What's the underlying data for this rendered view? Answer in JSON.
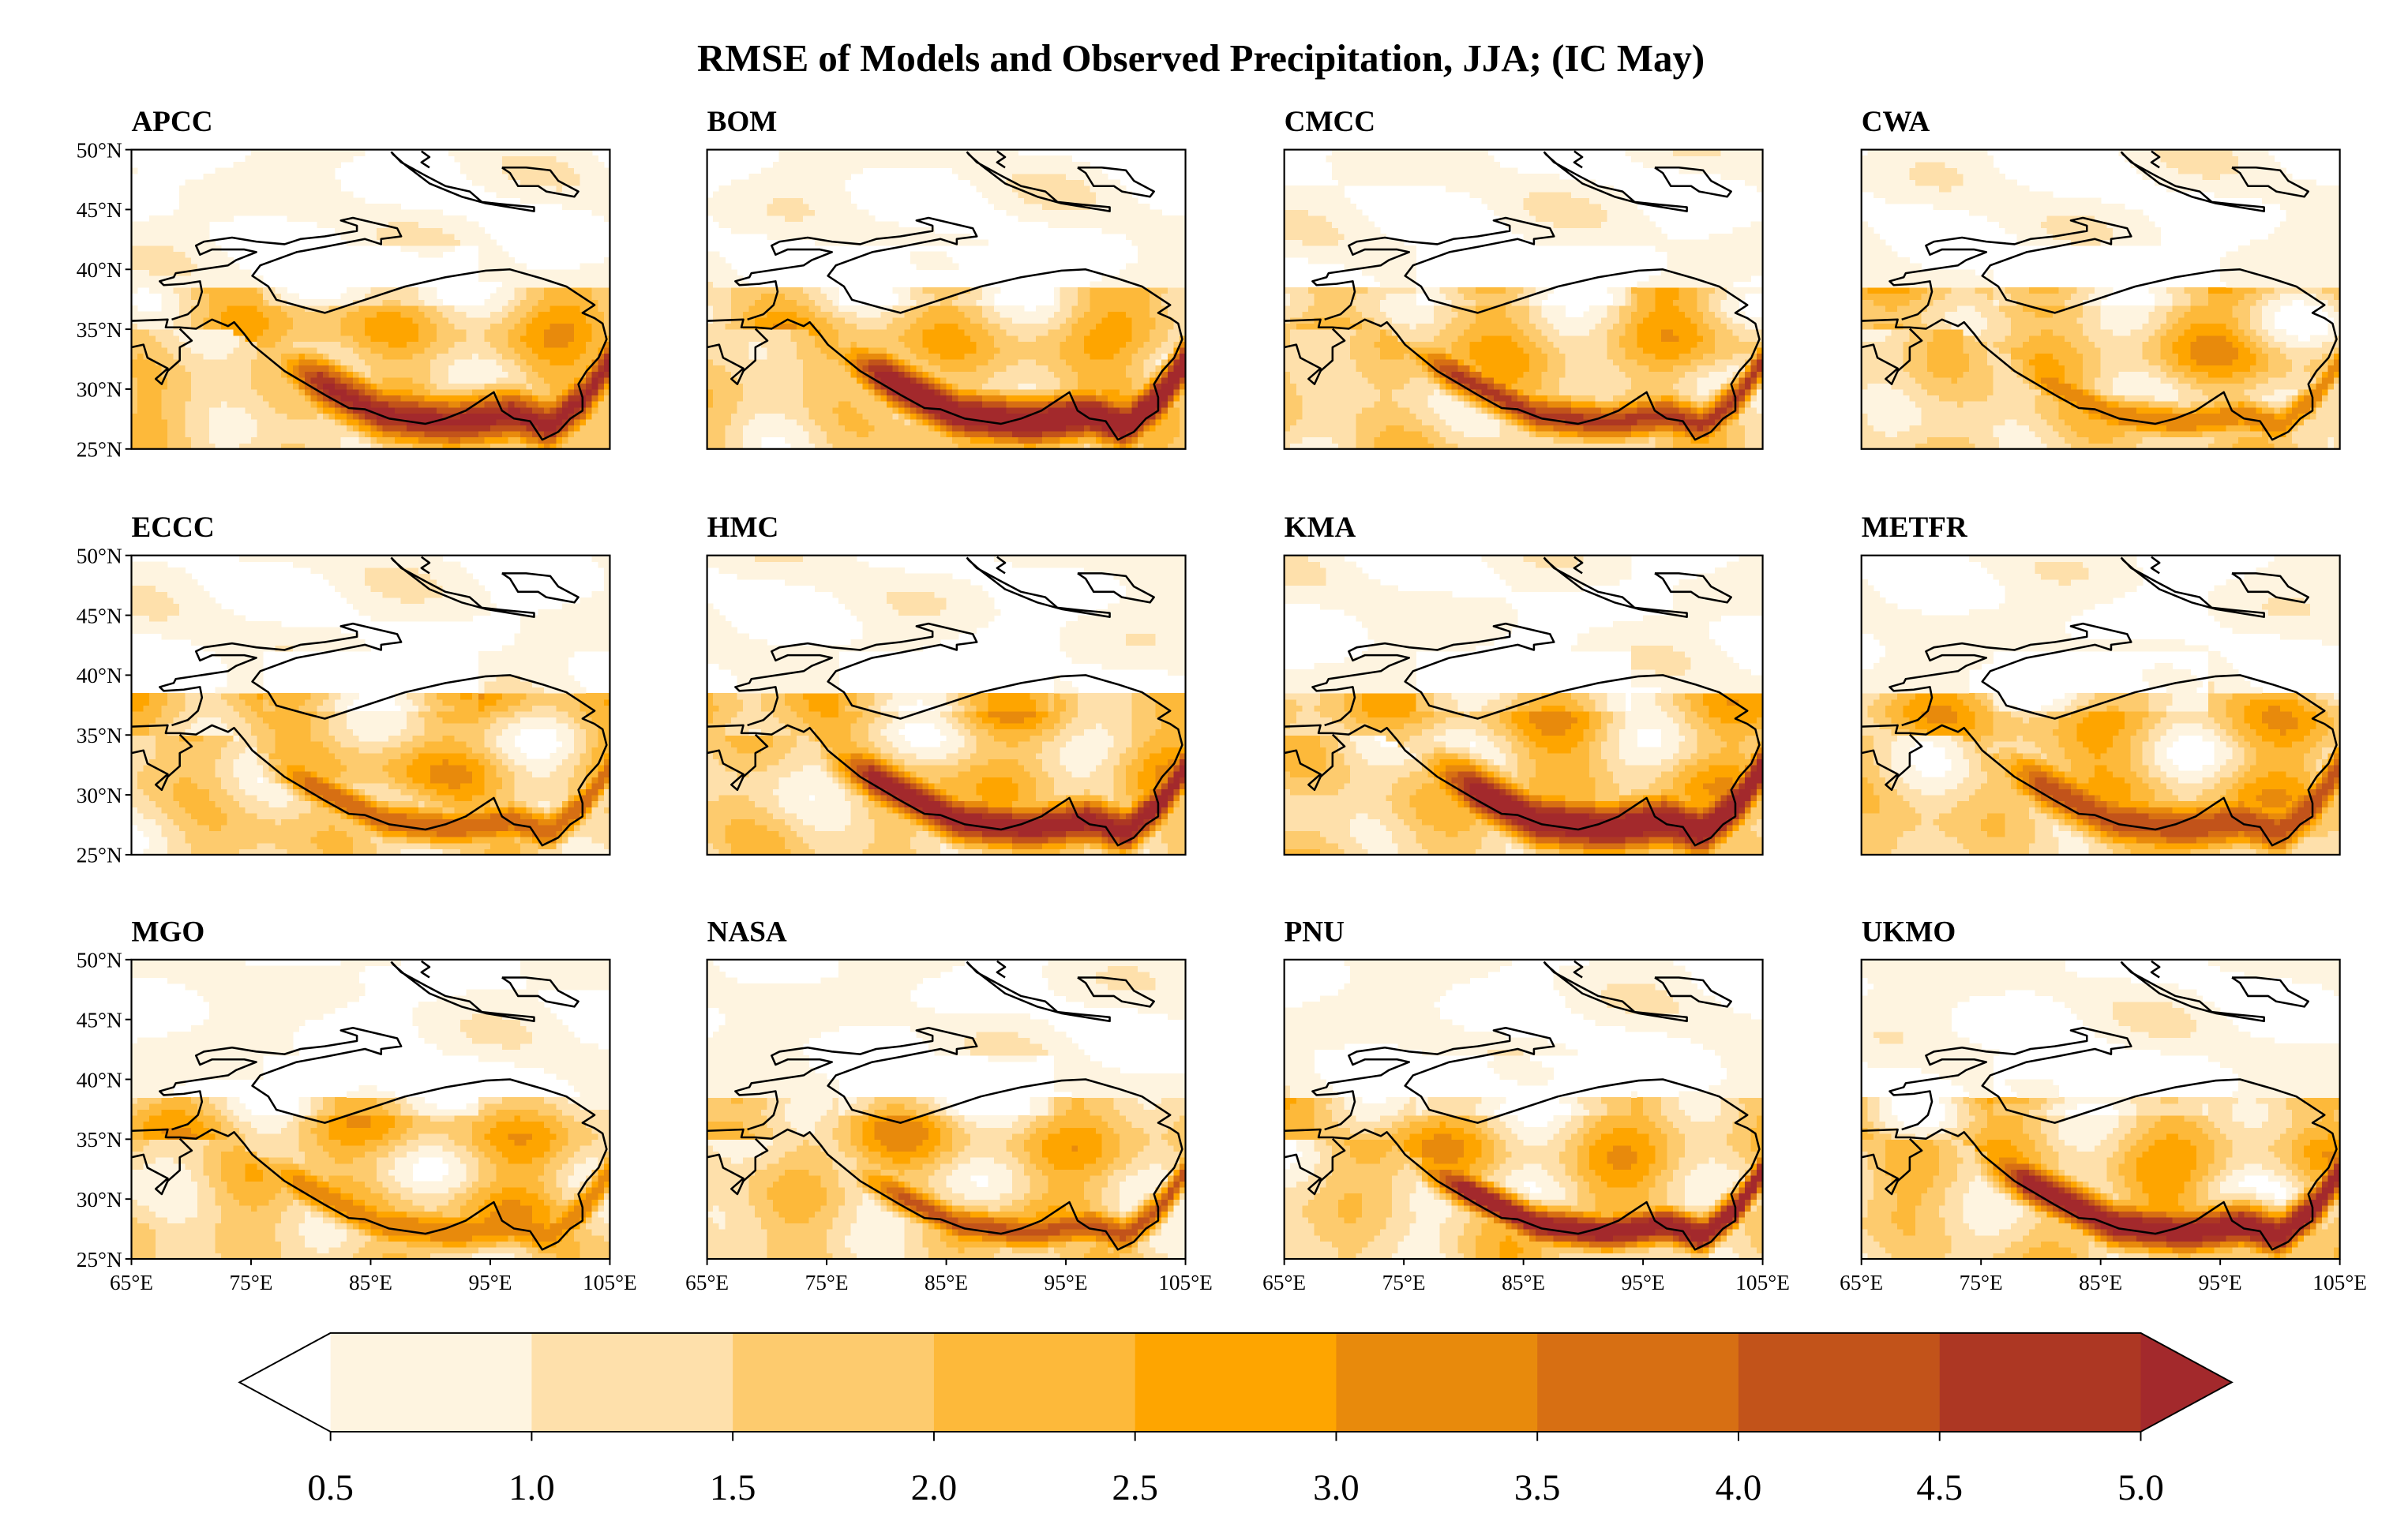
{
  "title": "RMSE of Models and Observed Precipitation, JJA;  (IC  May)",
  "chart_data": {
    "type": "heatmap",
    "title": "RMSE of Models and Observed Precipitation, JJA;  (IC  May)",
    "panels": [
      "APCC",
      "BOM",
      "CMCC",
      "CWA",
      "ECCC",
      "HMC",
      "KMA",
      "METFR",
      "MGO",
      "NASA",
      "PNU",
      "UKMO"
    ],
    "lon_range": [
      65,
      105
    ],
    "lat_range": [
      25,
      50
    ],
    "lon_ticks": [
      65,
      75,
      85,
      95,
      105
    ],
    "lon_tick_labels": [
      "65°E",
      "75°E",
      "85°E",
      "95°E",
      "105°E"
    ],
    "lat_ticks": [
      50,
      45,
      40,
      35,
      30,
      25
    ],
    "lat_tick_labels": [
      "50°N",
      "45°N",
      "40°N",
      "35°N",
      "30°N",
      "25°N"
    ],
    "colorbar": {
      "levels": [
        0.5,
        1.0,
        1.5,
        2.0,
        2.5,
        3.0,
        3.5,
        4.0,
        4.5,
        5.0
      ],
      "tick_labels": [
        "0.5",
        "1.0",
        "1.5",
        "2.0",
        "2.5",
        "3.0",
        "3.5",
        "4.0",
        "4.5",
        "5.0"
      ],
      "colors": [
        "#fef4e0",
        "#fee0ab",
        "#fdcb6e",
        "#fdb93a",
        "#fea500",
        "#e88a0c",
        "#d76f13",
        "#c2531a",
        "#ad3723"
      ],
      "under_color": "#ffffff",
      "over_color": "#a3292c",
      "extend": "both",
      "orientation": "horizontal"
    },
    "grid": false
  }
}
